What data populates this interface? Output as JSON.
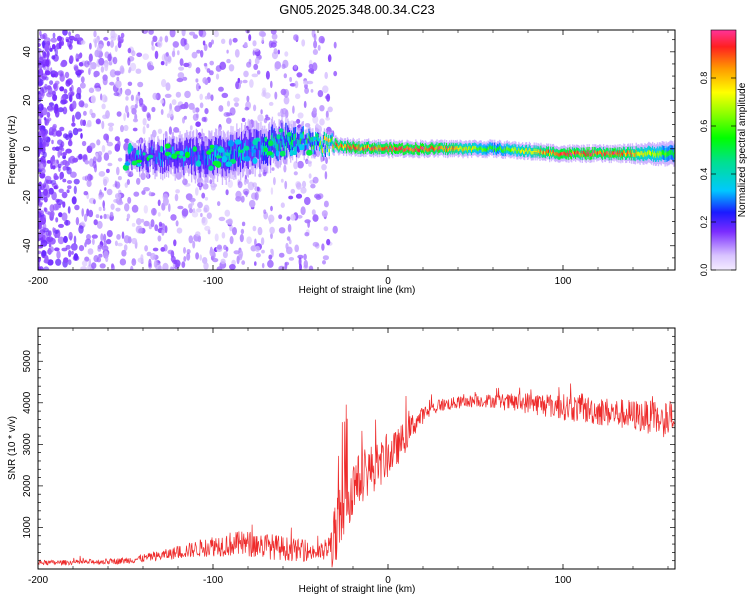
{
  "title": "GN05.2025.348.00.34.C23",
  "chart_data": [
    {
      "type": "heatmap",
      "xlabel": "Height of straight line (km)",
      "ylabel": "Frequency (Hz)",
      "xlim": [
        -200,
        164
      ],
      "ylim": [
        -50,
        49
      ],
      "xticks": [
        "-200",
        "-100",
        "0",
        "100"
      ],
      "yticks": [
        "40",
        "20",
        "0",
        "-20",
        "-40"
      ],
      "xtick_values": [
        -200,
        -100,
        0,
        100
      ],
      "ytick_values": [
        40,
        20,
        0,
        -20,
        -40
      ],
      "signal_band": {
        "x": [
          -150,
          -120,
          -100,
          -80,
          -60,
          -45,
          -30,
          0,
          30,
          60,
          100,
          130,
          160
        ],
        "center": [
          -3,
          -3,
          -4,
          -1,
          3,
          3,
          1,
          0,
          0,
          0,
          -2,
          -2,
          -2
        ],
        "halfwidth": [
          3,
          5,
          6,
          6,
          5,
          3,
          2,
          2,
          2,
          2,
          2,
          2,
          3
        ],
        "peak_amplitude": [
          0.25,
          0.3,
          0.35,
          0.35,
          0.45,
          0.5,
          0.85,
          0.95,
          0.95,
          0.55,
          0.95,
          0.95,
          0.55
        ]
      },
      "colorbar": {
        "label": "Normalized spectral amplitude",
        "range": [
          0,
          1
        ],
        "ticks": [
          "0.0",
          "0.2",
          "0.4",
          "0.6",
          "0.8"
        ],
        "tick_values": [
          0.0,
          0.2,
          0.4,
          0.6,
          0.8
        ]
      }
    },
    {
      "type": "line",
      "xlabel": "Height of straight line (km)",
      "ylabel": "SNR (10 * v/v)",
      "xlim": [
        -200,
        164
      ],
      "ylim": [
        0,
        5800
      ],
      "xticks": [
        "-200",
        "-100",
        "0",
        "100"
      ],
      "yticks": [
        "1000",
        "2000",
        "3000",
        "4000",
        "5000"
      ],
      "xtick_values": [
        -200,
        -100,
        0,
        100
      ],
      "ytick_values": [
        1000,
        2000,
        3000,
        4000,
        5000
      ],
      "color": "#ee2a2a",
      "series": [
        {
          "name": "SNR",
          "x": [
            -200,
            -180,
            -160,
            -150,
            -140,
            -130,
            -120,
            -110,
            -100,
            -90,
            -80,
            -70,
            -60,
            -50,
            -40,
            -35,
            -30,
            -25,
            -20,
            -15,
            -10,
            -5,
            0,
            5,
            10,
            15,
            20,
            25,
            30,
            40,
            50,
            60,
            70,
            80,
            90,
            100,
            110,
            120,
            130,
            140,
            150,
            160,
            164
          ],
          "mean": [
            150,
            160,
            180,
            200,
            260,
            320,
            400,
            480,
            560,
            600,
            600,
            560,
            500,
            440,
            400,
            420,
            700,
            1600,
            2000,
            2200,
            2400,
            2500,
            2700,
            2900,
            3200,
            3500,
            3700,
            3850,
            3950,
            4000,
            4050,
            4050,
            4000,
            4000,
            3950,
            3900,
            3850,
            3800,
            3750,
            3700,
            3650,
            3600,
            3600
          ],
          "noise": [
            60,
            60,
            70,
            80,
            100,
            120,
            160,
            200,
            260,
            300,
            320,
            320,
            300,
            260,
            200,
            260,
            900,
            900,
            700,
            600,
            600,
            550,
            500,
            450,
            400,
            300,
            200,
            180,
            160,
            150,
            150,
            170,
            220,
            260,
            300,
            320,
            340,
            350,
            360,
            380,
            400,
            480,
            480
          ]
        }
      ]
    }
  ]
}
